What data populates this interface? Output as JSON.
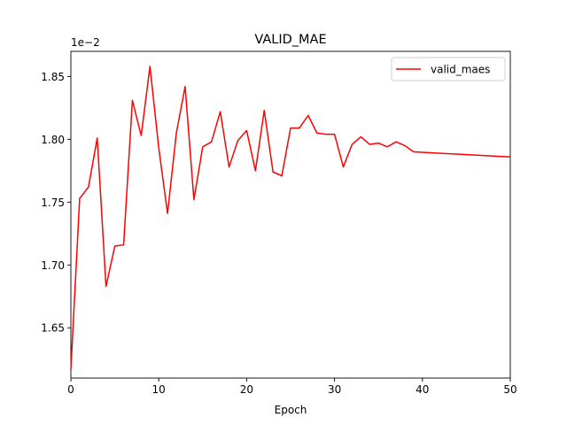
{
  "chart_data": {
    "type": "line",
    "title": "VALID_MAE",
    "xlabel": "Epoch",
    "ylabel": "",
    "y_offset_label": "1e−2",
    "xlim": [
      0,
      50
    ],
    "ylim": [
      1.61,
      1.87
    ],
    "x_ticks": [
      0,
      10,
      20,
      30,
      40,
      50
    ],
    "y_ticks": [
      1.65,
      1.7,
      1.75,
      1.8,
      1.85
    ],
    "y_tick_labels": [
      "1.65",
      "1.70",
      "1.75",
      "1.80",
      "1.85"
    ],
    "grid": false,
    "legend_position": "top-right",
    "series": [
      {
        "name": "valid_maes",
        "color": "#ff0000",
        "x": [
          0,
          1,
          2,
          3,
          4,
          5,
          6,
          7,
          8,
          9,
          10,
          11,
          12,
          13,
          14,
          15,
          16,
          17,
          18,
          19,
          20,
          21,
          22,
          23,
          24,
          25,
          26,
          27,
          28,
          29,
          30,
          31,
          32,
          33,
          34,
          35,
          36,
          37,
          38,
          39,
          50
        ],
        "y": [
          1.617,
          1.753,
          1.762,
          1.801,
          1.683,
          1.715,
          1.716,
          1.831,
          1.803,
          1.858,
          1.793,
          1.741,
          1.805,
          1.842,
          1.752,
          1.794,
          1.798,
          1.822,
          1.778,
          1.799,
          1.807,
          1.775,
          1.823,
          1.774,
          1.771,
          1.809,
          1.809,
          1.819,
          1.805,
          1.804,
          1.804,
          1.778,
          1.796,
          1.802,
          1.796,
          1.797,
          1.794,
          1.798,
          1.795,
          1.79,
          1.786
        ]
      }
    ]
  }
}
